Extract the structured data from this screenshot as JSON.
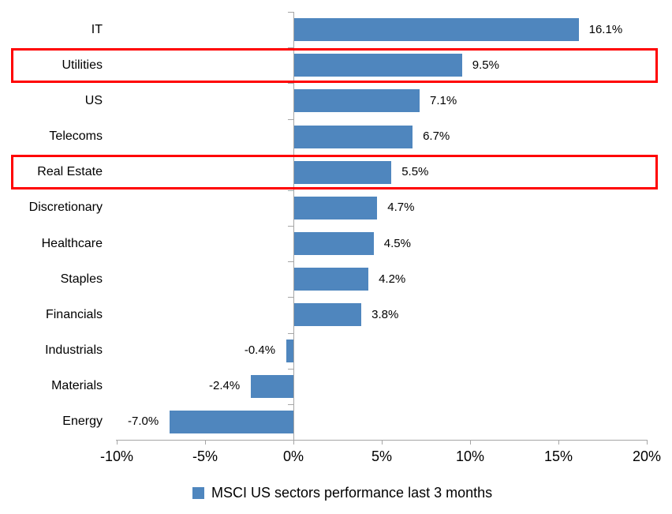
{
  "chart_data": {
    "type": "bar",
    "orientation": "horizontal",
    "title": "",
    "xlabel": "",
    "ylabel": "",
    "categories": [
      "IT",
      "Utilities",
      "US",
      "Telecoms",
      "Real Estate",
      "Discretionary",
      "Healthcare",
      "Staples",
      "Financials",
      "Industrials",
      "Materials",
      "Energy"
    ],
    "values": [
      16.1,
      9.5,
      7.1,
      6.7,
      5.5,
      4.7,
      4.5,
      4.2,
      3.8,
      -0.4,
      -2.4,
      -7.0
    ],
    "value_labels": [
      "16.1%",
      "9.5%",
      "7.1%",
      "6.7%",
      "5.5%",
      "4.7%",
      "4.5%",
      "4.2%",
      "3.8%",
      "-0.4%",
      "-2.4%",
      "-7.0%"
    ],
    "highlighted_categories": [
      "Utilities",
      "Real Estate"
    ],
    "xlim": [
      -10,
      20
    ],
    "x_tick_values": [
      -10,
      -5,
      0,
      5,
      10,
      15,
      20
    ],
    "x_tick_labels": [
      "-10%",
      "-5%",
      "0%",
      "5%",
      "10%",
      "15%",
      "20%"
    ],
    "grid": false,
    "legend_position": "bottom",
    "legend": "MSCI US sectors performance last 3 months",
    "colors": {
      "bar": "#4f86be",
      "highlight_border": "#ff0000",
      "axis": "#a6a6a6",
      "text": "#000000",
      "background": "#ffffff"
    }
  }
}
